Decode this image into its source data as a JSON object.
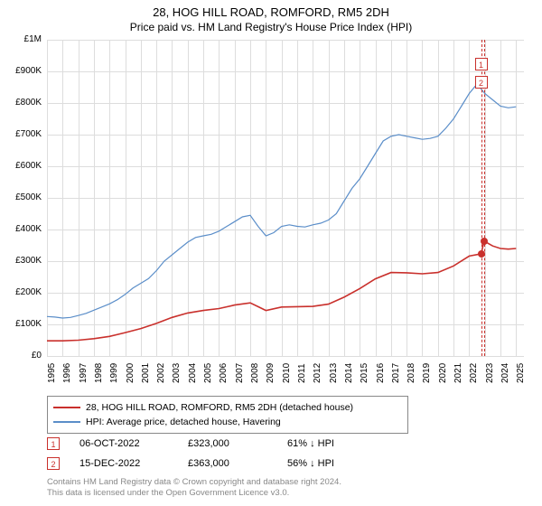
{
  "title": "28, HOG HILL ROAD, ROMFORD, RM5 2DH",
  "subtitle": "Price paid vs. HM Land Registry's House Price Index (HPI)",
  "chart": {
    "type": "line",
    "background_color": "#ffffff",
    "grid_color": "#dddddd",
    "xlim": [
      1995,
      2025.5
    ],
    "ylim": [
      0,
      1000000
    ],
    "ytick_step": 100000,
    "ytick_labels": [
      "£0",
      "£100K",
      "£200K",
      "£300K",
      "£400K",
      "£500K",
      "£600K",
      "£700K",
      "£800K",
      "£900K",
      "£1M"
    ],
    "xtick_years": [
      1995,
      1996,
      1997,
      1998,
      1999,
      2000,
      2001,
      2002,
      2003,
      2004,
      2005,
      2006,
      2007,
      2008,
      2009,
      2010,
      2011,
      2012,
      2013,
      2014,
      2015,
      2016,
      2017,
      2018,
      2019,
      2020,
      2021,
      2022,
      2023,
      2024,
      2025
    ],
    "hpi_series": {
      "color": "#5b8ec9",
      "line_width": 1.2,
      "points": [
        [
          1995.0,
          125000
        ],
        [
          1995.5,
          123000
        ],
        [
          1996.0,
          120000
        ],
        [
          1996.5,
          122000
        ],
        [
          1997.0,
          128000
        ],
        [
          1997.5,
          135000
        ],
        [
          1998.0,
          145000
        ],
        [
          1998.5,
          155000
        ],
        [
          1999.0,
          165000
        ],
        [
          1999.5,
          178000
        ],
        [
          2000.0,
          195000
        ],
        [
          2000.5,
          215000
        ],
        [
          2001.0,
          230000
        ],
        [
          2001.5,
          245000
        ],
        [
          2002.0,
          270000
        ],
        [
          2002.5,
          300000
        ],
        [
          2003.0,
          320000
        ],
        [
          2003.5,
          340000
        ],
        [
          2004.0,
          360000
        ],
        [
          2004.5,
          375000
        ],
        [
          2005.0,
          380000
        ],
        [
          2005.5,
          385000
        ],
        [
          2006.0,
          395000
        ],
        [
          2006.5,
          410000
        ],
        [
          2007.0,
          425000
        ],
        [
          2007.5,
          440000
        ],
        [
          2008.0,
          445000
        ],
        [
          2008.5,
          410000
        ],
        [
          2009.0,
          380000
        ],
        [
          2009.5,
          390000
        ],
        [
          2010.0,
          410000
        ],
        [
          2010.5,
          415000
        ],
        [
          2011.0,
          410000
        ],
        [
          2011.5,
          408000
        ],
        [
          2012.0,
          415000
        ],
        [
          2012.5,
          420000
        ],
        [
          2013.0,
          430000
        ],
        [
          2013.5,
          450000
        ],
        [
          2014.0,
          490000
        ],
        [
          2014.5,
          530000
        ],
        [
          2015.0,
          560000
        ],
        [
          2015.5,
          600000
        ],
        [
          2016.0,
          640000
        ],
        [
          2016.5,
          680000
        ],
        [
          2017.0,
          695000
        ],
        [
          2017.5,
          700000
        ],
        [
          2018.0,
          695000
        ],
        [
          2018.5,
          690000
        ],
        [
          2019.0,
          685000
        ],
        [
          2019.5,
          688000
        ],
        [
          2020.0,
          695000
        ],
        [
          2020.5,
          720000
        ],
        [
          2021.0,
          750000
        ],
        [
          2021.5,
          790000
        ],
        [
          2022.0,
          830000
        ],
        [
          2022.5,
          860000
        ],
        [
          2023.0,
          830000
        ],
        [
          2023.5,
          810000
        ],
        [
          2024.0,
          790000
        ],
        [
          2024.5,
          785000
        ],
        [
          2025.0,
          788000
        ]
      ]
    },
    "price_series": {
      "color": "#c9302c",
      "line_width": 1.6,
      "points": [
        [
          1995.0,
          48000
        ],
        [
          1996.0,
          48000
        ],
        [
          1997.0,
          50000
        ],
        [
          1998.0,
          55000
        ],
        [
          1999.0,
          62000
        ],
        [
          2000.0,
          74000
        ],
        [
          2001.0,
          87000
        ],
        [
          2002.0,
          103000
        ],
        [
          2003.0,
          122000
        ],
        [
          2004.0,
          136000
        ],
        [
          2005.0,
          144000
        ],
        [
          2006.0,
          150000
        ],
        [
          2007.0,
          161000
        ],
        [
          2008.0,
          168000
        ],
        [
          2008.5,
          156000
        ],
        [
          2009.0,
          144000
        ],
        [
          2010.0,
          155000
        ],
        [
          2011.0,
          156000
        ],
        [
          2012.0,
          157000
        ],
        [
          2013.0,
          164000
        ],
        [
          2014.0,
          186000
        ],
        [
          2015.0,
          213000
        ],
        [
          2016.0,
          244000
        ],
        [
          2017.0,
          264000
        ],
        [
          2018.0,
          263000
        ],
        [
          2019.0,
          260000
        ],
        [
          2020.0,
          264000
        ],
        [
          2021.0,
          285000
        ],
        [
          2022.0,
          316000
        ],
        [
          2022.76,
          323000
        ],
        [
          2022.96,
          363000
        ],
        [
          2023.5,
          348000
        ],
        [
          2024.0,
          340000
        ],
        [
          2024.5,
          338000
        ],
        [
          2025.0,
          340000
        ]
      ]
    },
    "sale_markers": [
      {
        "n": "1",
        "x": 2022.76,
        "y": 323000
      },
      {
        "n": "2",
        "x": 2022.96,
        "y": 363000
      }
    ]
  },
  "legend": {
    "series1": {
      "label": "28, HOG HILL ROAD, ROMFORD, RM5 2DH (detached house)",
      "color": "#c9302c"
    },
    "series2": {
      "label": "HPI: Average price, detached house, Havering",
      "color": "#5b8ec9"
    }
  },
  "sales": [
    {
      "n": "1",
      "date": "06-OCT-2022",
      "price": "£323,000",
      "pct": "61% ↓ HPI"
    },
    {
      "n": "2",
      "date": "15-DEC-2022",
      "price": "£363,000",
      "pct": "56% ↓ HPI"
    }
  ],
  "footer": {
    "line1": "Contains HM Land Registry data © Crown copyright and database right 2024.",
    "line2": "This data is licensed under the Open Government Licence v3.0."
  }
}
